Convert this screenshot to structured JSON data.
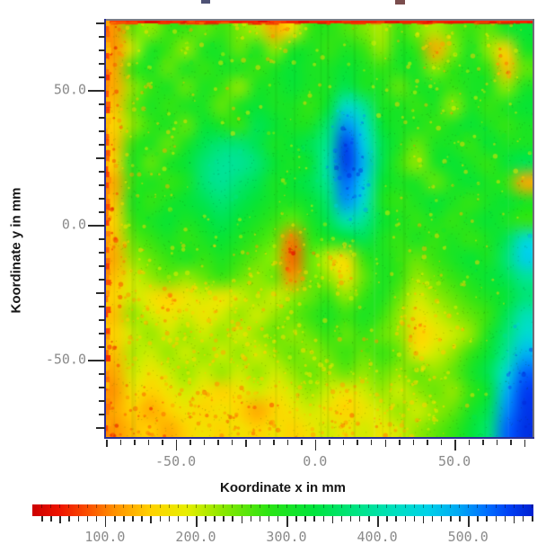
{
  "chart_data": {
    "type": "heatmap",
    "xlabel": "Koordinate x in mm",
    "ylabel": "Koordinate y in mm",
    "x_axis": {
      "range_mm": [
        -75,
        78
      ],
      "major_tick_values": [
        -50,
        0,
        50
      ],
      "major_tick_labels": [
        "-50.0",
        "0.0",
        "50.0"
      ],
      "minor_step_mm": 5,
      "medium_step_mm": 25
    },
    "y_axis": {
      "range_mm": [
        -79,
        76
      ],
      "major_tick_values": [
        50,
        0,
        -50
      ],
      "major_tick_labels": [
        "50.0",
        "0.0",
        "-50.0"
      ],
      "minor_step_mm": 5,
      "medium_step_mm": 25
    },
    "colorbar": {
      "range": [
        20,
        572
      ],
      "major_tick_values": [
        100,
        200,
        300,
        400,
        500
      ],
      "major_tick_labels": [
        "100.0",
        "200.0",
        "300.0",
        "400.0",
        "500.0"
      ],
      "minor_step": 10,
      "medium_step": 50,
      "orientation": "horizontal",
      "low_color_meaning": "red = low values",
      "high_color_meaning": "blue = high values"
    },
    "colormap_stops": [
      [
        20,
        "#cc0000"
      ],
      [
        50,
        "#ee1400"
      ],
      [
        80,
        "#fb4e00"
      ],
      [
        110,
        "#ff9000"
      ],
      [
        150,
        "#ffd200"
      ],
      [
        190,
        "#e8ee00"
      ],
      [
        230,
        "#8ae800"
      ],
      [
        280,
        "#2ce414"
      ],
      [
        330,
        "#00e43c"
      ],
      [
        380,
        "#00e488"
      ],
      [
        420,
        "#00e0c0"
      ],
      [
        455,
        "#00d2e8"
      ],
      [
        490,
        "#00a8f4"
      ],
      [
        520,
        "#0070ff"
      ],
      [
        545,
        "#0040f4"
      ],
      [
        572,
        "#0020d0"
      ]
    ],
    "grid_cols": 24,
    "grid_rows": 22,
    "value_grid": [
      [
        113,
        250,
        225,
        275,
        275,
        250,
        275,
        238,
        213,
        125,
        175,
        275,
        288,
        263,
        238,
        213,
        275,
        238,
        213,
        250,
        275,
        250,
        300,
        322
      ],
      [
        113,
        200,
        300,
        275,
        225,
        300,
        300,
        250,
        300,
        225,
        300,
        300,
        275,
        300,
        275,
        225,
        300,
        275,
        125,
        225,
        300,
        225,
        150,
        300
      ],
      [
        125,
        275,
        300,
        250,
        300,
        275,
        300,
        300,
        275,
        300,
        322,
        300,
        300,
        322,
        300,
        275,
        300,
        300,
        225,
        275,
        300,
        275,
        138,
        250
      ],
      [
        125,
        225,
        275,
        300,
        250,
        300,
        275,
        225,
        300,
        300,
        322,
        300,
        300,
        345,
        300,
        300,
        250,
        300,
        300,
        275,
        300,
        300,
        225,
        300
      ],
      [
        138,
        250,
        300,
        275,
        300,
        300,
        250,
        300,
        322,
        300,
        300,
        275,
        322,
        434,
        390,
        300,
        300,
        275,
        300,
        225,
        300,
        275,
        300,
        322
      ],
      [
        150,
        225,
        275,
        300,
        250,
        322,
        300,
        275,
        345,
        322,
        300,
        300,
        367,
        502,
        434,
        322,
        300,
        300,
        275,
        300,
        322,
        300,
        275,
        300
      ],
      [
        138,
        275,
        300,
        250,
        300,
        345,
        367,
        367,
        345,
        300,
        322,
        345,
        390,
        546,
        457,
        345,
        300,
        250,
        300,
        300,
        275,
        322,
        300,
        300
      ],
      [
        150,
        300,
        250,
        300,
        322,
        367,
        390,
        390,
        367,
        322,
        300,
        322,
        412,
        552,
        479,
        345,
        275,
        225,
        300,
        322,
        300,
        275,
        322,
        345
      ],
      [
        125,
        275,
        300,
        275,
        300,
        367,
        390,
        367,
        345,
        300,
        322,
        345,
        390,
        524,
        457,
        322,
        300,
        300,
        250,
        300,
        322,
        300,
        275,
        125
      ],
      [
        138,
        300,
        275,
        300,
        322,
        345,
        367,
        345,
        322,
        300,
        300,
        322,
        367,
        502,
        434,
        300,
        275,
        300,
        322,
        300,
        275,
        300,
        322,
        300
      ],
      [
        150,
        275,
        300,
        322,
        300,
        322,
        345,
        322,
        300,
        275,
        250,
        300,
        345,
        412,
        390,
        322,
        300,
        275,
        300,
        275,
        300,
        322,
        300,
        275
      ],
      [
        138,
        250,
        275,
        300,
        275,
        300,
        322,
        300,
        275,
        250,
        100,
        275,
        300,
        322,
        345,
        300,
        275,
        300,
        275,
        300,
        275,
        300,
        345,
        434
      ],
      [
        125,
        225,
        250,
        275,
        300,
        275,
        300,
        275,
        250,
        225,
        88,
        250,
        200,
        163,
        275,
        300,
        275,
        250,
        275,
        300,
        322,
        300,
        367,
        457
      ],
      [
        138,
        200,
        225,
        250,
        225,
        250,
        275,
        250,
        225,
        250,
        113,
        250,
        225,
        175,
        250,
        300,
        275,
        225,
        250,
        275,
        300,
        322,
        345,
        390
      ],
      [
        150,
        200,
        175,
        150,
        175,
        200,
        175,
        200,
        225,
        200,
        225,
        250,
        275,
        225,
        275,
        300,
        250,
        200,
        225,
        250,
        275,
        300,
        322,
        367
      ],
      [
        138,
        225,
        200,
        175,
        200,
        175,
        200,
        225,
        200,
        225,
        250,
        275,
        300,
        275,
        300,
        275,
        225,
        175,
        200,
        225,
        250,
        275,
        345,
        412
      ],
      [
        150,
        200,
        225,
        200,
        225,
        200,
        225,
        200,
        225,
        250,
        225,
        250,
        275,
        250,
        275,
        250,
        225,
        150,
        175,
        200,
        225,
        300,
        367,
        434
      ],
      [
        138,
        213,
        200,
        225,
        200,
        225,
        200,
        225,
        200,
        225,
        250,
        225,
        250,
        275,
        250,
        275,
        250,
        175,
        200,
        225,
        275,
        322,
        390,
        479
      ],
      [
        125,
        200,
        175,
        200,
        225,
        200,
        225,
        200,
        225,
        200,
        225,
        250,
        225,
        250,
        225,
        250,
        225,
        250,
        225,
        250,
        300,
        345,
        434,
        524
      ],
      [
        113,
        175,
        150,
        175,
        200,
        175,
        150,
        175,
        200,
        175,
        200,
        225,
        200,
        175,
        200,
        225,
        200,
        225,
        250,
        225,
        275,
        322,
        479,
        546
      ],
      [
        125,
        150,
        125,
        150,
        175,
        150,
        175,
        150,
        125,
        150,
        175,
        200,
        175,
        150,
        175,
        200,
        225,
        200,
        225,
        250,
        300,
        345,
        502,
        552
      ],
      [
        113,
        138,
        150,
        125,
        150,
        175,
        150,
        175,
        150,
        175,
        150,
        175,
        200,
        175,
        200,
        175,
        200,
        225,
        250,
        275,
        322,
        367,
        524,
        556
      ]
    ]
  },
  "style": {
    "background": "#ffffff",
    "tick_label_color": "#8a8a8a",
    "axis_title_color": "#161616",
    "spine_left_bottom_color": "#2a2f94",
    "spine_top_right_color": "#7d7d87",
    "tick_color": "#2b2b2b"
  }
}
